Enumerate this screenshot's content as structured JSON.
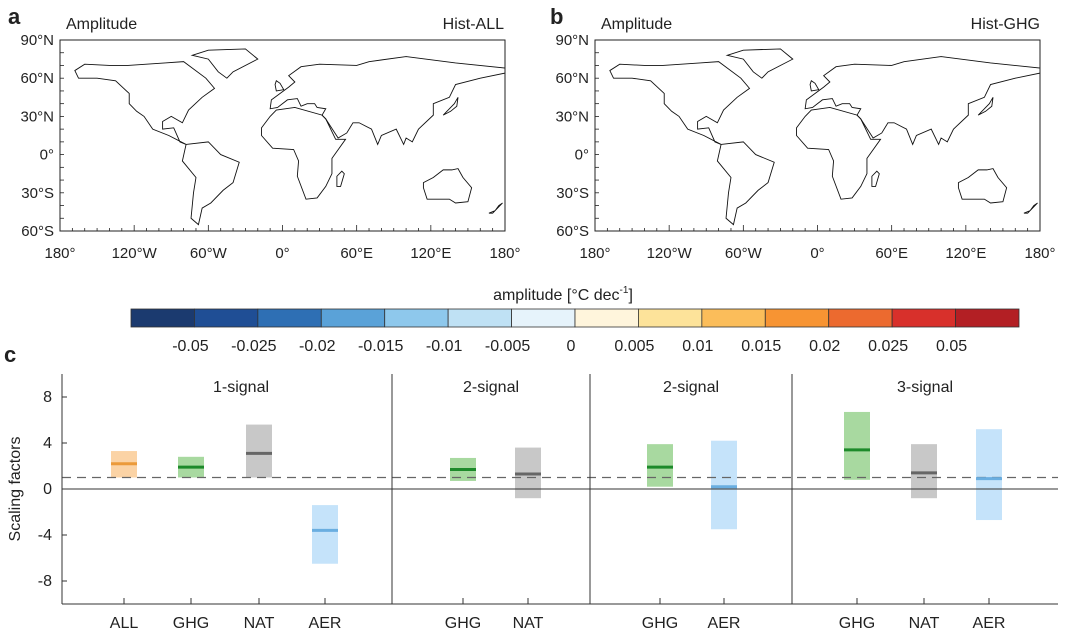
{
  "panels": [
    {
      "letter": "a",
      "title": "Amplitude",
      "experiment": "Hist-ALL"
    },
    {
      "letter": "b",
      "title": "Amplitude",
      "experiment": "Hist-GHG"
    }
  ],
  "map_axes": {
    "lat_labels": [
      "90°N",
      "60°N",
      "30°N",
      "0°",
      "30°S",
      "60°S"
    ],
    "lon_labels": [
      "180°",
      "120°W",
      "60°W",
      "0°",
      "60°E",
      "120°E",
      "180°"
    ]
  },
  "colorbar": {
    "label": "amplitude [°C dec",
    "label_sup": "-1",
    "label_end": "]",
    "tick_labels": [
      "-0.05",
      "-0.025",
      "-0.02",
      "-0.015",
      "-0.01",
      "-0.005",
      "0",
      "0.005",
      "0.01",
      "0.015",
      "0.02",
      "0.025",
      "0.05"
    ],
    "colors": [
      "#1b3a6f",
      "#1f4e95",
      "#2e6fb4",
      "#5aa2d8",
      "#8ec8ec",
      "#bfe1f4",
      "#e6f3fb",
      "#fff5dc",
      "#fde39a",
      "#fbbd5a",
      "#f79433",
      "#ec6a2f",
      "#d8302b",
      "#b31f24"
    ]
  },
  "chart_data": {
    "type": "bar",
    "panel_letter": "c",
    "ylabel": "Scaling factors",
    "ylim": [
      -10,
      10
    ],
    "yticks": [
      8,
      4,
      0,
      -4,
      -8
    ],
    "reference_line": 1,
    "groups": [
      {
        "title": "1-signal",
        "bars": [
          {
            "name": "ALL",
            "best": 2.2,
            "low": 1.0,
            "high": 3.3
          },
          {
            "name": "GHG",
            "best": 1.9,
            "low": 1.0,
            "high": 2.8
          },
          {
            "name": "NAT",
            "best": 3.1,
            "low": 1.0,
            "high": 5.6
          },
          {
            "name": "AER",
            "best": -3.6,
            "low": -6.5,
            "high": -1.4
          }
        ]
      },
      {
        "title": "2-signal",
        "bars": [
          {
            "name": "GHG",
            "best": 1.7,
            "low": 0.7,
            "high": 2.7
          },
          {
            "name": "NAT",
            "best": 1.3,
            "low": -0.8,
            "high": 3.6
          }
        ]
      },
      {
        "title": "2-signal",
        "bars": [
          {
            "name": "GHG",
            "best": 1.9,
            "low": 0.2,
            "high": 3.9
          },
          {
            "name": "AER",
            "best": 0.2,
            "low": -3.5,
            "high": 4.2
          }
        ]
      },
      {
        "title": "3-signal",
        "bars": [
          {
            "name": "GHG",
            "best": 3.4,
            "low": 0.8,
            "high": 6.7
          },
          {
            "name": "NAT",
            "best": 1.4,
            "low": -0.8,
            "high": 3.9
          },
          {
            "name": "AER",
            "best": 0.9,
            "low": -2.7,
            "high": 5.2
          }
        ]
      }
    ],
    "colors": {
      "ALL": {
        "line": "#eb9a3a",
        "fill": "#fbd3a5"
      },
      "GHG": {
        "line": "#1d8a2a",
        "fill": "#a8d9a0"
      },
      "NAT": {
        "line": "#666666",
        "fill": "#c8c8c8"
      },
      "AER": {
        "line": "#6aaee0",
        "fill": "#c5e3fa"
      }
    }
  }
}
